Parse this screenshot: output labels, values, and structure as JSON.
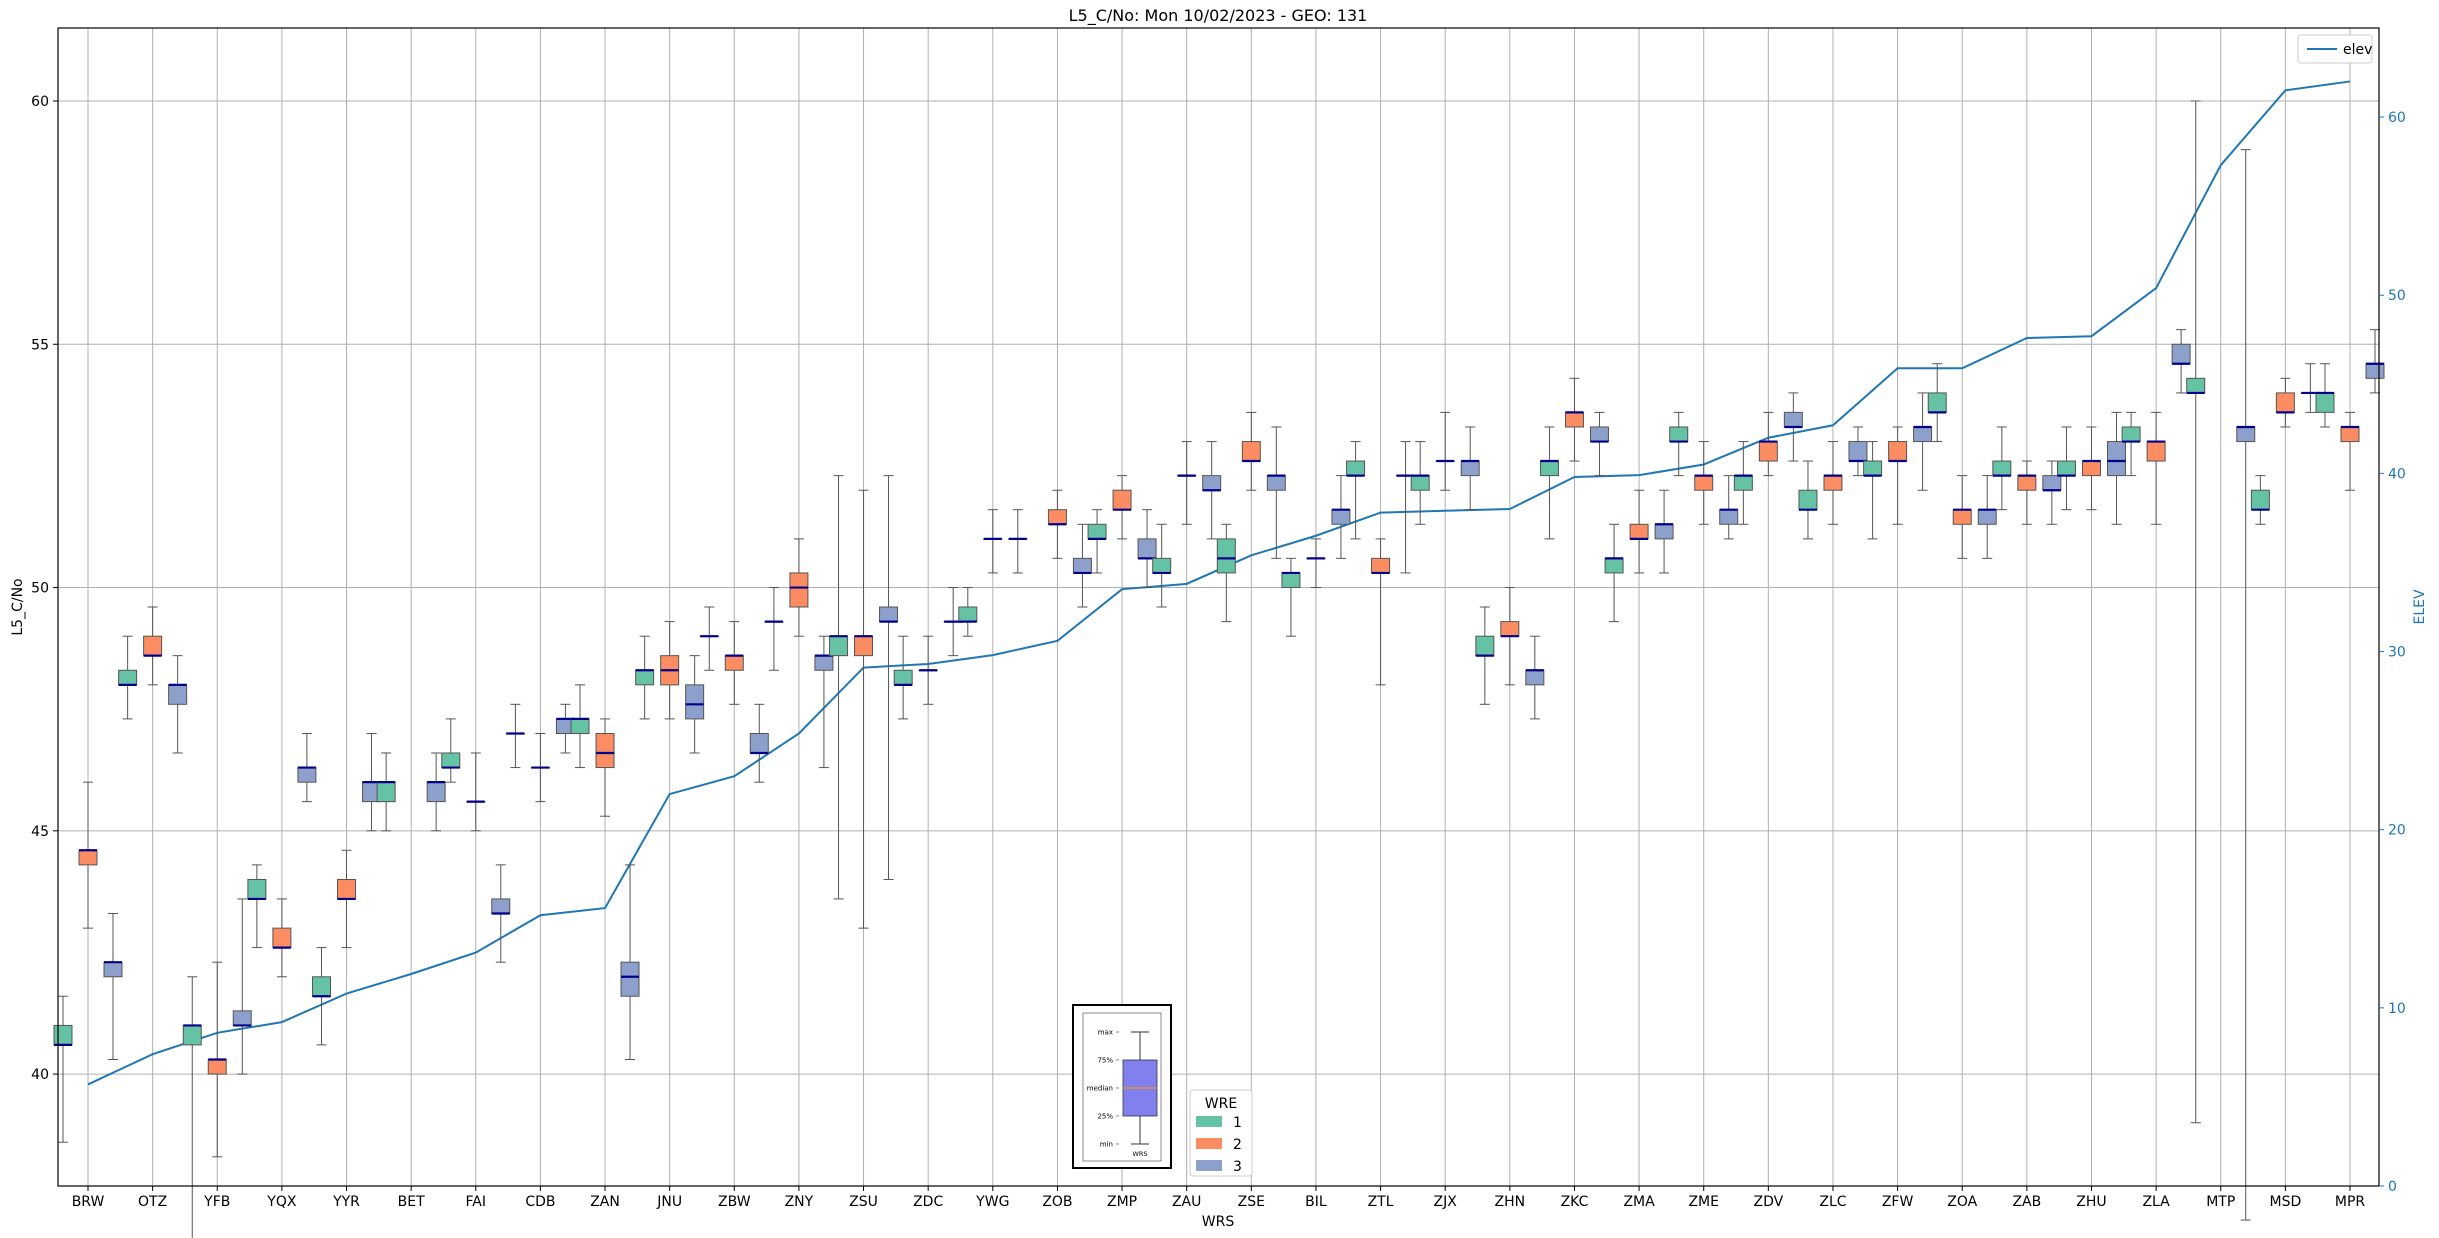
{
  "chart_data": {
    "type": "box",
    "title": "L5_C/No: Mon 10/02/2023 - GEO: 131",
    "xlabel": "WRS",
    "ylabel": "L5_C/No",
    "y2label": "ELEV",
    "ylim": [
      37.7,
      61.5
    ],
    "y2lim": [
      0,
      65
    ],
    "yticks": [
      40,
      45,
      50,
      55,
      60
    ],
    "y2ticks": [
      0,
      10,
      20,
      30,
      40,
      50,
      60
    ],
    "grid": true,
    "legend_elev": {
      "label": "elev",
      "placement": "top-right"
    },
    "legend_wre": {
      "title": "WRE",
      "placement": "bottom-center",
      "entries": [
        "1",
        "2",
        "3"
      ]
    },
    "colors": {
      "1": "#66c2a5",
      "2": "#fc8d62",
      "3": "#8da0cb",
      "median": "#00008b",
      "elev": "#1f77b4",
      "whisker": "#555555",
      "grid": "#b0b0b0"
    },
    "inset_key": {
      "labels": [
        "max",
        "75%",
        "median",
        "25%",
        "min"
      ],
      "xlabel": "WRS",
      "box_color": "#8080ee",
      "median_color": "#ff9900",
      "values": {
        "max": 9,
        "q3": 7,
        "median": 5,
        "q1": 3,
        "min": 1
      }
    },
    "categories": [
      "BRW",
      "OTZ",
      "YFB",
      "YQX",
      "YYR",
      "BET",
      "FAI",
      "CDB",
      "ZAN",
      "JNU",
      "ZBW",
      "ZNY",
      "ZSU",
      "ZDC",
      "YWG",
      "ZOB",
      "ZMP",
      "ZAU",
      "ZSE",
      "BIL",
      "ZTL",
      "ZJX",
      "ZHN",
      "ZKC",
      "ZMA",
      "ZME",
      "ZDV",
      "ZLC",
      "ZFW",
      "ZOA",
      "ZAB",
      "ZHU",
      "ZLA",
      "MTP",
      "MSD",
      "MPR"
    ],
    "elev": [
      5.7,
      7.4,
      8.6,
      9.2,
      10.8,
      11.9,
      13.1,
      15.2,
      15.6,
      22.0,
      23.0,
      25.4,
      29.1,
      29.3,
      29.8,
      30.6,
      33.5,
      33.8,
      35.4,
      36.5,
      37.8,
      37.9,
      38.0,
      39.8,
      39.9,
      40.5,
      42.0,
      42.7,
      45.9,
      45.9,
      47.6,
      47.7,
      50.4,
      57.3,
      61.5,
      62.0
    ],
    "boxes": [
      [
        {
          "wre": 1,
          "min": 38.6,
          "q1": 40.6,
          "med": 40.6,
          "q3": 41.0,
          "max": 41.6
        },
        {
          "wre": 2,
          "min": 43.0,
          "q1": 44.3,
          "med": 44.6,
          "q3": 44.6,
          "max": 46.0
        },
        {
          "wre": 3,
          "min": 40.3,
          "q1": 42.0,
          "med": 42.3,
          "q3": 42.3,
          "max": 43.3
        }
      ],
      [
        {
          "wre": 1,
          "min": 47.3,
          "q1": 48.0,
          "med": 48.0,
          "q3": 48.3,
          "max": 49.0
        },
        {
          "wre": 2,
          "min": 48.0,
          "q1": 48.6,
          "med": 48.6,
          "q3": 49.0,
          "max": 49.6
        },
        {
          "wre": 3,
          "min": 46.6,
          "q1": 47.6,
          "med": 48.0,
          "q3": 48.0,
          "max": 48.6
        }
      ],
      [
        {
          "wre": 1,
          "min": 36.6,
          "q1": 40.6,
          "med": 41.0,
          "q3": 41.0,
          "max": 42.0
        },
        {
          "wre": 2,
          "min": 38.3,
          "q1": 40.0,
          "med": 40.3,
          "q3": 40.3,
          "max": 42.3
        },
        {
          "wre": 3,
          "min": 40.0,
          "q1": 41.0,
          "med": 41.0,
          "q3": 41.3,
          "max": 43.6
        }
      ],
      [
        {
          "wre": 1,
          "min": 42.6,
          "q1": 43.6,
          "med": 43.6,
          "q3": 44.0,
          "max": 44.3
        },
        {
          "wre": 2,
          "min": 42.0,
          "q1": 42.6,
          "med": 42.6,
          "q3": 43.0,
          "max": 43.6
        },
        {
          "wre": 3,
          "min": 45.6,
          "q1": 46.0,
          "med": 46.3,
          "q3": 46.3,
          "max": 47.0
        }
      ],
      [
        {
          "wre": 1,
          "min": 40.6,
          "q1": 41.6,
          "med": 41.6,
          "q3": 42.0,
          "max": 42.6
        },
        {
          "wre": 2,
          "min": 42.6,
          "q1": 43.6,
          "med": 43.6,
          "q3": 44.0,
          "max": 44.6
        },
        {
          "wre": 3,
          "min": 45.0,
          "q1": 45.6,
          "med": 46.0,
          "q3": 46.0,
          "max": 47.0
        }
      ],
      [
        {
          "wre": 1,
          "min": 45.0,
          "q1": 45.6,
          "med": 46.0,
          "q3": 46.0,
          "max": 46.6
        },
        {
          "wre": 3,
          "min": 45.0,
          "q1": 45.6,
          "med": 46.0,
          "q3": 46.0,
          "max": 46.6
        }
      ],
      [
        {
          "wre": 1,
          "min": 46.0,
          "q1": 46.3,
          "med": 46.3,
          "q3": 46.6,
          "max": 47.3
        },
        {
          "wre": 2,
          "min": 45.0,
          "q1": 45.6,
          "med": 45.6,
          "q3": 45.6,
          "max": 46.6
        },
        {
          "wre": 3,
          "min": 42.3,
          "q1": 43.3,
          "med": 43.3,
          "q3": 43.6,
          "max": 44.3
        }
      ],
      [
        {
          "wre": 1,
          "min": 46.3,
          "q1": 47.0,
          "med": 47.0,
          "q3": 47.0,
          "max": 47.6
        },
        {
          "wre": 2,
          "min": 45.6,
          "q1": 46.3,
          "med": 46.3,
          "q3": 46.3,
          "max": 47.0
        },
        {
          "wre": 3,
          "min": 46.6,
          "q1": 47.0,
          "med": 47.3,
          "q3": 47.3,
          "max": 47.6
        }
      ],
      [
        {
          "wre": 1,
          "min": 46.3,
          "q1": 47.0,
          "med": 47.3,
          "q3": 47.3,
          "max": 48.0
        },
        {
          "wre": 2,
          "min": 45.3,
          "q1": 46.3,
          "med": 46.6,
          "q3": 47.0,
          "max": 47.3
        },
        {
          "wre": 3,
          "min": 40.3,
          "q1": 41.6,
          "med": 42.0,
          "q3": 42.3,
          "max": 44.3
        }
      ],
      [
        {
          "wre": 1,
          "min": 47.3,
          "q1": 48.0,
          "med": 48.3,
          "q3": 48.3,
          "max": 49.0
        },
        {
          "wre": 2,
          "min": 47.3,
          "q1": 48.0,
          "med": 48.3,
          "q3": 48.6,
          "max": 49.3
        },
        {
          "wre": 3,
          "min": 46.6,
          "q1": 47.3,
          "med": 47.6,
          "q3": 48.0,
          "max": 48.6
        }
      ],
      [
        {
          "wre": 1,
          "min": 48.3,
          "q1": 49.0,
          "med": 49.0,
          "q3": 49.0,
          "max": 49.6
        },
        {
          "wre": 2,
          "min": 47.6,
          "q1": 48.3,
          "med": 48.6,
          "q3": 48.6,
          "max": 49.3
        },
        {
          "wre": 3,
          "min": 46.0,
          "q1": 46.6,
          "med": 46.6,
          "q3": 47.0,
          "max": 47.6
        }
      ],
      [
        {
          "wre": 1,
          "min": 48.3,
          "q1": 49.3,
          "med": 49.3,
          "q3": 49.3,
          "max": 50.0
        },
        {
          "wre": 2,
          "min": 49.0,
          "q1": 49.6,
          "med": 50.0,
          "q3": 50.3,
          "max": 51.0
        },
        {
          "wre": 3,
          "min": 46.3,
          "q1": 48.3,
          "med": 48.6,
          "q3": 48.6,
          "max": 49.0
        }
      ],
      [
        {
          "wre": 1,
          "min": 43.6,
          "q1": 48.6,
          "med": 49.0,
          "q3": 49.0,
          "max": 52.3
        },
        {
          "wre": 2,
          "min": 43.0,
          "q1": 48.6,
          "med": 49.0,
          "q3": 49.0,
          "max": 52.0
        },
        {
          "wre": 3,
          "min": 44.0,
          "q1": 49.3,
          "med": 49.3,
          "q3": 49.6,
          "max": 52.3
        }
      ],
      [
        {
          "wre": 1,
          "min": 47.3,
          "q1": 48.0,
          "med": 48.0,
          "q3": 48.3,
          "max": 49.0
        },
        {
          "wre": 2,
          "min": 47.6,
          "q1": 48.3,
          "med": 48.3,
          "q3": 48.3,
          "max": 49.0
        },
        {
          "wre": 3,
          "min": 48.6,
          "q1": 49.3,
          "med": 49.3,
          "q3": 49.3,
          "max": 50.0
        }
      ],
      [
        {
          "wre": 1,
          "min": 49.0,
          "q1": 49.3,
          "med": 49.3,
          "q3": 49.6,
          "max": 50.0
        },
        {
          "wre": 2,
          "min": 50.3,
          "q1": 51.0,
          "med": 51.0,
          "q3": 51.0,
          "max": 51.6
        },
        {
          "wre": 3,
          "min": 50.3,
          "q1": 51.0,
          "med": 51.0,
          "q3": 51.0,
          "max": 51.6
        }
      ],
      [
        {
          "wre": 2,
          "min": 50.6,
          "q1": 51.3,
          "med": 51.3,
          "q3": 51.6,
          "max": 52.0
        },
        {
          "wre": 3,
          "min": 49.6,
          "q1": 50.3,
          "med": 50.3,
          "q3": 50.6,
          "max": 51.3
        }
      ],
      [
        {
          "wre": 1,
          "min": 50.3,
          "q1": 51.0,
          "med": 51.0,
          "q3": 51.3,
          "max": 51.6
        },
        {
          "wre": 2,
          "min": 51.0,
          "q1": 51.6,
          "med": 51.6,
          "q3": 52.0,
          "max": 52.3
        },
        {
          "wre": 3,
          "min": 50.0,
          "q1": 50.6,
          "med": 50.6,
          "q3": 51.0,
          "max": 51.6
        }
      ],
      [
        {
          "wre": 1,
          "min": 49.6,
          "q1": 50.3,
          "med": 50.3,
          "q3": 50.6,
          "max": 51.3
        },
        {
          "wre": 2,
          "min": 51.3,
          "q1": 52.3,
          "med": 52.3,
          "q3": 52.3,
          "max": 53.0
        },
        {
          "wre": 3,
          "min": 51.0,
          "q1": 52.0,
          "med": 52.0,
          "q3": 52.3,
          "max": 53.0
        }
      ],
      [
        {
          "wre": 1,
          "min": 49.3,
          "q1": 50.3,
          "med": 50.6,
          "q3": 51.0,
          "max": 51.3
        },
        {
          "wre": 2,
          "min": 52.0,
          "q1": 52.6,
          "med": 52.6,
          "q3": 53.0,
          "max": 53.6
        },
        {
          "wre": 3,
          "min": 50.6,
          "q1": 52.0,
          "med": 52.3,
          "q3": 52.3,
          "max": 53.3
        }
      ],
      [
        {
          "wre": 1,
          "min": 49.0,
          "q1": 50.0,
          "med": 50.3,
          "q3": 50.3,
          "max": 50.6
        },
        {
          "wre": 2,
          "min": 50.0,
          "q1": 50.6,
          "med": 50.6,
          "q3": 50.6,
          "max": 51.0
        },
        {
          "wre": 3,
          "min": 50.6,
          "q1": 51.3,
          "med": 51.6,
          "q3": 51.6,
          "max": 52.3
        }
      ],
      [
        {
          "wre": 1,
          "min": 51.0,
          "q1": 52.3,
          "med": 52.3,
          "q3": 52.6,
          "max": 53.0
        },
        {
          "wre": 2,
          "min": 48.0,
          "q1": 50.3,
          "med": 50.3,
          "q3": 50.6,
          "max": 51.0
        },
        {
          "wre": 3,
          "min": 50.3,
          "q1": 52.3,
          "med": 52.3,
          "q3": 52.3,
          "max": 53.0
        }
      ],
      [
        {
          "wre": 1,
          "min": 51.3,
          "q1": 52.0,
          "med": 52.3,
          "q3": 52.3,
          "max": 53.0
        },
        {
          "wre": 2,
          "min": 52.0,
          "q1": 52.6,
          "med": 52.6,
          "q3": 52.6,
          "max": 53.6
        },
        {
          "wre": 3,
          "min": 51.6,
          "q1": 52.3,
          "med": 52.6,
          "q3": 52.6,
          "max": 53.3
        }
      ],
      [
        {
          "wre": 1,
          "min": 47.6,
          "q1": 48.6,
          "med": 48.6,
          "q3": 49.0,
          "max": 49.6
        },
        {
          "wre": 2,
          "min": 48.0,
          "q1": 49.0,
          "med": 49.0,
          "q3": 49.3,
          "max": 50.0
        },
        {
          "wre": 3,
          "min": 47.3,
          "q1": 48.0,
          "med": 48.3,
          "q3": 48.3,
          "max": 49.0
        }
      ],
      [
        {
          "wre": 1,
          "min": 51.0,
          "q1": 52.3,
          "med": 52.6,
          "q3": 52.6,
          "max": 53.3
        },
        {
          "wre": 2,
          "min": 52.6,
          "q1": 53.3,
          "med": 53.6,
          "q3": 53.6,
          "max": 54.3
        },
        {
          "wre": 3,
          "min": 52.3,
          "q1": 53.0,
          "med": 53.0,
          "q3": 53.3,
          "max": 53.6
        }
      ],
      [
        {
          "wre": 1,
          "min": 49.3,
          "q1": 50.3,
          "med": 50.6,
          "q3": 50.6,
          "max": 51.3
        },
        {
          "wre": 2,
          "min": 50.3,
          "q1": 51.0,
          "med": 51.0,
          "q3": 51.3,
          "max": 52.0
        },
        {
          "wre": 3,
          "min": 50.3,
          "q1": 51.0,
          "med": 51.3,
          "q3": 51.3,
          "max": 52.0
        }
      ],
      [
        {
          "wre": 1,
          "min": 52.3,
          "q1": 53.0,
          "med": 53.0,
          "q3": 53.3,
          "max": 53.6
        },
        {
          "wre": 2,
          "min": 51.3,
          "q1": 52.0,
          "med": 52.3,
          "q3": 52.3,
          "max": 53.0
        },
        {
          "wre": 3,
          "min": 51.0,
          "q1": 51.3,
          "med": 51.6,
          "q3": 51.6,
          "max": 52.3
        }
      ],
      [
        {
          "wre": 1,
          "min": 51.3,
          "q1": 52.0,
          "med": 52.3,
          "q3": 52.3,
          "max": 53.0
        },
        {
          "wre": 2,
          "min": 52.3,
          "q1": 52.6,
          "med": 53.0,
          "q3": 53.0,
          "max": 53.6
        },
        {
          "wre": 3,
          "min": 52.6,
          "q1": 53.3,
          "med": 53.3,
          "q3": 53.6,
          "max": 54.0
        }
      ],
      [
        {
          "wre": 1,
          "min": 51.0,
          "q1": 51.6,
          "med": 51.6,
          "q3": 52.0,
          "max": 52.6
        },
        {
          "wre": 2,
          "min": 51.3,
          "q1": 52.0,
          "med": 52.3,
          "q3": 52.3,
          "max": 53.0
        },
        {
          "wre": 3,
          "min": 52.3,
          "q1": 52.6,
          "med": 52.6,
          "q3": 53.0,
          "max": 53.3
        }
      ],
      [
        {
          "wre": 1,
          "min": 51.0,
          "q1": 52.3,
          "med": 52.3,
          "q3": 52.6,
          "max": 53.0
        },
        {
          "wre": 2,
          "min": 51.3,
          "q1": 52.6,
          "med": 52.6,
          "q3": 53.0,
          "max": 53.3
        },
        {
          "wre": 3,
          "min": 52.0,
          "q1": 53.0,
          "med": 53.3,
          "q3": 53.3,
          "max": 54.0
        }
      ],
      [
        {
          "wre": 1,
          "min": 53.0,
          "q1": 53.6,
          "med": 53.6,
          "q3": 54.0,
          "max": 54.6
        },
        {
          "wre": 2,
          "min": 50.6,
          "q1": 51.3,
          "med": 51.6,
          "q3": 51.6,
          "max": 52.3
        },
        {
          "wre": 3,
          "min": 50.6,
          "q1": 51.3,
          "med": 51.6,
          "q3": 51.6,
          "max": 52.3
        }
      ],
      [
        {
          "wre": 1,
          "min": 51.6,
          "q1": 52.3,
          "med": 52.3,
          "q3": 52.6,
          "max": 53.3
        },
        {
          "wre": 2,
          "min": 51.3,
          "q1": 52.0,
          "med": 52.3,
          "q3": 52.3,
          "max": 52.6
        },
        {
          "wre": 3,
          "min": 51.3,
          "q1": 52.0,
          "med": 52.0,
          "q3": 52.3,
          "max": 52.6
        }
      ],
      [
        {
          "wre": 1,
          "min": 51.6,
          "q1": 52.3,
          "med": 52.3,
          "q3": 52.6,
          "max": 53.3
        },
        {
          "wre": 2,
          "min": 51.6,
          "q1": 52.3,
          "med": 52.6,
          "q3": 52.6,
          "max": 53.3
        },
        {
          "wre": 3,
          "min": 51.3,
          "q1": 52.3,
          "med": 52.6,
          "q3": 53.0,
          "max": 53.6
        }
      ],
      [
        {
          "wre": 1,
          "min": 52.3,
          "q1": 53.0,
          "med": 53.0,
          "q3": 53.3,
          "max": 53.6
        },
        {
          "wre": 2,
          "min": 51.3,
          "q1": 52.6,
          "med": 53.0,
          "q3": 53.0,
          "max": 53.6
        },
        {
          "wre": 3,
          "min": 54.0,
          "q1": 54.6,
          "med": 54.6,
          "q3": 55.0,
          "max": 55.3
        }
      ],
      [
        {
          "wre": 1,
          "min": 39.0,
          "q1": 54.0,
          "med": 54.0,
          "q3": 54.3,
          "max": 60.0
        },
        {
          "wre": 3,
          "min": 37.0,
          "q1": 53.0,
          "med": 53.3,
          "q3": 53.3,
          "max": 59.0
        }
      ],
      [
        {
          "wre": 1,
          "min": 51.3,
          "q1": 51.6,
          "med": 51.6,
          "q3": 52.0,
          "max": 52.3
        },
        {
          "wre": 2,
          "min": 53.3,
          "q1": 53.6,
          "med": 53.6,
          "q3": 54.0,
          "max": 54.3
        },
        {
          "wre": 3,
          "min": 53.6,
          "q1": 54.0,
          "med": 54.0,
          "q3": 54.0,
          "max": 54.6
        }
      ],
      [
        {
          "wre": 1,
          "min": 53.3,
          "q1": 53.6,
          "med": 54.0,
          "q3": 54.0,
          "max": 54.6
        },
        {
          "wre": 2,
          "min": 52.0,
          "q1": 53.0,
          "med": 53.3,
          "q3": 53.3,
          "max": 53.6
        },
        {
          "wre": 3,
          "min": 54.0,
          "q1": 54.3,
          "med": 54.6,
          "q3": 54.6,
          "max": 55.3
        }
      ]
    ]
  }
}
